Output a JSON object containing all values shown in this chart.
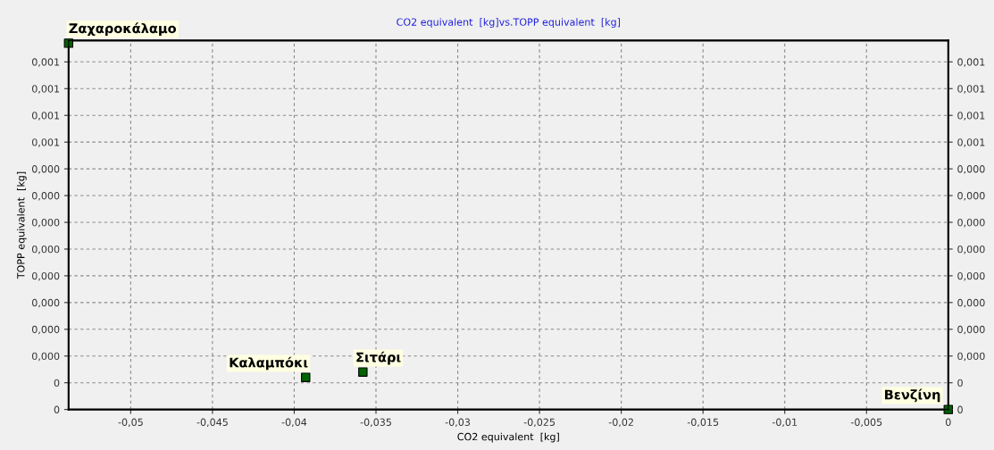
{
  "chart_data": {
    "type": "scatter",
    "title": "CO2 equivalent  [kg]vs.TOPP equivalent  [kg]",
    "xlabel": "CO2 equivalent  [kg]",
    "ylabel": "TOPP equivalent  [kg]",
    "series": [
      {
        "color": "#006400",
        "x": [
          -0.0538,
          -0.0393,
          -0.0358,
          0
        ],
        "values": [
          0.000685,
          6e-05,
          7e-05,
          0
        ]
      }
    ],
    "marker": "square",
    "grid": true,
    "annotations": [
      {
        "text": "Ζαχαροκάλαμο",
        "x": -0.0538,
        "y": 0.000685
      },
      {
        "text": "Καλαμπόκι",
        "x": -0.0393,
        "y": 6e-05
      },
      {
        "text": "Σιτάρι",
        "x": -0.0358,
        "y": 7e-05
      },
      {
        "text": "Βενζίνη",
        "x": 0,
        "y": 0
      }
    ],
    "xlim": [
      -0.0538,
      0
    ],
    "ylim": [
      0,
      0.00069
    ],
    "xticks": [
      {
        "value": -0.05,
        "label": "-0,05"
      },
      {
        "value": -0.045,
        "label": "-0,045"
      },
      {
        "value": -0.04,
        "label": "-0,04"
      },
      {
        "value": -0.035,
        "label": "-0,035"
      },
      {
        "value": -0.03,
        "label": "-0,03"
      },
      {
        "value": -0.025,
        "label": "-0,025"
      },
      {
        "value": -0.02,
        "label": "-0,02"
      },
      {
        "value": -0.015,
        "label": "-0,015"
      },
      {
        "value": -0.01,
        "label": "-0,01"
      },
      {
        "value": -0.005,
        "label": "-0,005"
      },
      0
    ],
    "yticks": [
      0,
      {
        "value": 5e-05,
        "label": "0"
      },
      {
        "value": 0.0001,
        "label": "0,000"
      },
      {
        "value": 0.00015,
        "label": "0,000"
      },
      {
        "value": 0.0002,
        "label": "0,000"
      },
      {
        "value": 0.00025,
        "label": "0,000"
      },
      {
        "value": 0.0003,
        "label": "0,000"
      },
      {
        "value": 0.00035,
        "label": "0,000"
      },
      {
        "value": 0.0004,
        "label": "0,000"
      },
      {
        "value": 0.00045,
        "label": "0,000"
      },
      {
        "value": 0.0005,
        "label": "0,001"
      },
      {
        "value": 0.00055,
        "label": "0,001"
      },
      {
        "value": 0.0006,
        "label": "0,001"
      },
      {
        "value": 0.00065,
        "label": "0,001"
      }
    ],
    "y2lim": [
      0,
      0.00069
    ],
    "y2ticks": [
      0,
      {
        "value": 5e-05,
        "label": "0"
      },
      {
        "value": 0.0001,
        "label": "0,000"
      },
      {
        "value": 0.00015,
        "label": "0,000"
      },
      {
        "value": 0.0002,
        "label": "0,000"
      },
      {
        "value": 0.00025,
        "label": "0,000"
      },
      {
        "value": 0.0003,
        "label": "0,000"
      },
      {
        "value": 0.00035,
        "label": "0,000"
      },
      {
        "value": 0.0004,
        "label": "0,000"
      },
      {
        "value": 0.00045,
        "label": "0,000"
      },
      {
        "value": 0.0005,
        "label": "0,001"
      },
      {
        "value": 0.00055,
        "label": "0,001"
      },
      {
        "value": 0.0006,
        "label": "0,001"
      },
      {
        "value": 0.00065,
        "label": "0,001"
      }
    ]
  }
}
